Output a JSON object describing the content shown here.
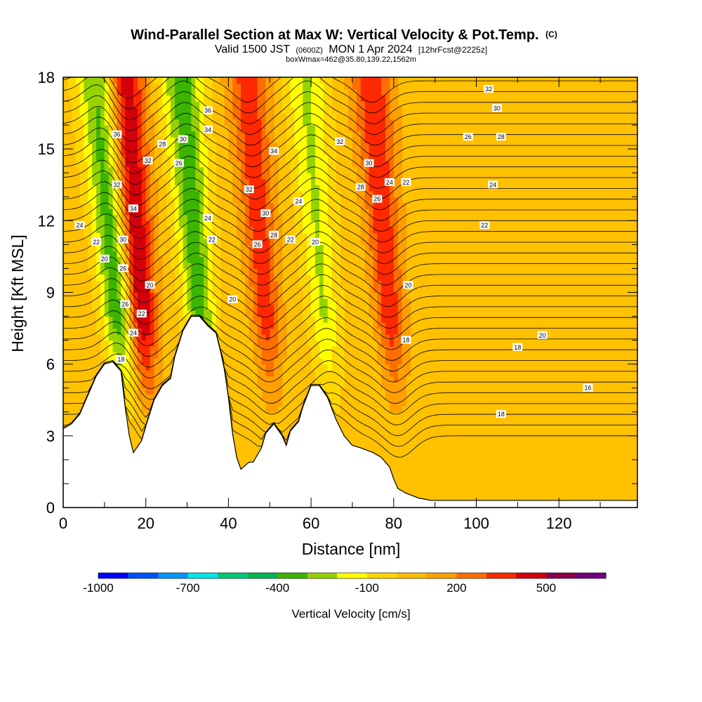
{
  "chart_data": {
    "type": "heatmap",
    "title": "Wind-Parallel Section at Max W: Vertical Velocity & Pot.Temp.",
    "title_mark": "(C)",
    "subtitle_parts": [
      "Valid 1500 JST",
      "(0600Z)",
      "MON 1 Apr 2024",
      "[12hrFcst@2225z]"
    ],
    "subtitle2": "boxWmax=462@35.80,139.22,1562m",
    "xlabel": "Distance [nm]",
    "ylabel": "Height [Kft MSL]",
    "xlim": [
      0,
      139
    ],
    "ylim": [
      0,
      18
    ],
    "x_ticks": [
      "0",
      "20",
      "40",
      "60",
      "80",
      "100",
      "120"
    ],
    "x_tick_values": [
      0,
      20,
      40,
      60,
      80,
      100,
      120
    ],
    "y_ticks": [
      "0",
      "3",
      "6",
      "9",
      "12",
      "15",
      "18"
    ],
    "y_tick_values": [
      0,
      3,
      6,
      9,
      12,
      15,
      18
    ],
    "colorbar": {
      "label": "Vertical Velocity [cm/s]",
      "tick_labels": [
        "-1000",
        "-700",
        "-400",
        "-100",
        "200",
        "500"
      ],
      "tick_values": [
        -1000,
        -700,
        -400,
        -100,
        200,
        500
      ],
      "levels": [
        -1000,
        -900,
        -800,
        -700,
        -600,
        -500,
        -400,
        -300,
        -200,
        -100,
        0,
        100,
        200,
        300,
        400,
        500,
        600,
        700
      ],
      "colors": [
        "#0000ff",
        "#0050ff",
        "#0096ff",
        "#00e6e6",
        "#00c878",
        "#00b450",
        "#3cb400",
        "#96d200",
        "#ffff00",
        "#ffd700",
        "#ffbb00",
        "#ff9f00",
        "#ff6e00",
        "#ff2800",
        "#d2000a",
        "#8c0046",
        "#6e007d"
      ]
    },
    "terrain": [
      [
        0,
        3.3
      ],
      [
        2,
        3.5
      ],
      [
        4,
        3.9
      ],
      [
        6,
        4.7
      ],
      [
        8,
        5.5
      ],
      [
        10,
        6.0
      ],
      [
        12,
        6.1
      ],
      [
        14,
        5.7
      ],
      [
        15,
        4.2
      ],
      [
        16,
        3.0
      ],
      [
        17,
        2.3
      ],
      [
        19,
        2.8
      ],
      [
        20,
        3.4
      ],
      [
        22,
        4.5
      ],
      [
        24,
        5.1
      ],
      [
        26,
        5.4
      ],
      [
        27,
        6.3
      ],
      [
        29,
        7.4
      ],
      [
        31,
        8.0
      ],
      [
        33,
        8.0
      ],
      [
        35,
        7.6
      ],
      [
        37,
        7.3
      ],
      [
        38,
        6.6
      ],
      [
        39,
        5.8
      ],
      [
        40,
        4.6
      ],
      [
        41,
        3.1
      ],
      [
        42,
        2.1
      ],
      [
        43,
        1.6
      ],
      [
        45,
        1.9
      ],
      [
        46,
        1.9
      ],
      [
        48,
        2.5
      ],
      [
        49,
        3.1
      ],
      [
        51,
        3.5
      ],
      [
        53,
        3.0
      ],
      [
        54,
        2.6
      ],
      [
        55,
        3.2
      ],
      [
        57,
        3.6
      ],
      [
        58,
        4.2
      ],
      [
        60,
        5.1
      ],
      [
        62,
        5.1
      ],
      [
        64,
        4.6
      ],
      [
        66,
        3.7
      ],
      [
        68,
        3.0
      ],
      [
        70,
        2.6
      ],
      [
        72,
        2.5
      ],
      [
        75,
        2.3
      ],
      [
        77,
        2.1
      ],
      [
        79,
        1.7
      ],
      [
        80,
        1.2
      ],
      [
        81,
        0.8
      ],
      [
        83,
        0.6
      ],
      [
        86,
        0.4
      ],
      [
        89,
        0.3
      ],
      [
        92,
        0.3
      ],
      [
        139,
        0.3
      ]
    ],
    "updrafts": [
      {
        "x": 20,
        "w": 480
      },
      {
        "x": 50,
        "w": 320
      },
      {
        "x": 80,
        "w": 340
      }
    ],
    "downdrafts": [
      {
        "x": 14,
        "w": -420
      },
      {
        "x": 34,
        "w": -400
      },
      {
        "x": 64,
        "w": -250
      }
    ],
    "theta_contour_labels": [
      {
        "text": "32",
        "x": 67,
        "y": 15.3
      },
      {
        "text": "30",
        "x": 74,
        "y": 14.4
      },
      {
        "text": "28",
        "x": 72,
        "y": 13.4
      },
      {
        "text": "26",
        "x": 76,
        "y": 12.9
      },
      {
        "text": "24",
        "x": 79,
        "y": 13.6
      },
      {
        "text": "22",
        "x": 83,
        "y": 13.6
      },
      {
        "text": "20",
        "x": 83.5,
        "y": 9.3
      },
      {
        "text": "18",
        "x": 83,
        "y": 7.0
      },
      {
        "text": "32",
        "x": 103,
        "y": 17.5
      },
      {
        "text": "30",
        "x": 105,
        "y": 16.7
      },
      {
        "text": "28",
        "x": 106,
        "y": 15.5
      },
      {
        "text": "26",
        "x": 98,
        "y": 15.5
      },
      {
        "text": "24",
        "x": 104,
        "y": 13.5
      },
      {
        "text": "22",
        "x": 102,
        "y": 11.8
      },
      {
        "text": "20",
        "x": 116,
        "y": 7.2
      },
      {
        "text": "18",
        "x": 110,
        "y": 6.7
      },
      {
        "text": "16",
        "x": 127,
        "y": 5.0
      },
      {
        "text": "18",
        "x": 106,
        "y": 3.9
      },
      {
        "text": "36",
        "x": 35,
        "y": 16.6
      },
      {
        "text": "34",
        "x": 35,
        "y": 15.8
      },
      {
        "text": "34",
        "x": 51,
        "y": 14.9
      },
      {
        "text": "32",
        "x": 45,
        "y": 13.3
      },
      {
        "text": "30",
        "x": 49,
        "y": 12.3
      },
      {
        "text": "28",
        "x": 51,
        "y": 11.4
      },
      {
        "text": "26",
        "x": 47,
        "y": 11.0
      },
      {
        "text": "24",
        "x": 57,
        "y": 12.8
      },
      {
        "text": "22",
        "x": 55,
        "y": 11.2
      },
      {
        "text": "20",
        "x": 61,
        "y": 11.1
      },
      {
        "text": "24",
        "x": 35,
        "y": 12.1
      },
      {
        "text": "22",
        "x": 36,
        "y": 11.2
      },
      {
        "text": "20",
        "x": 41,
        "y": 8.7
      },
      {
        "text": "30",
        "x": 29,
        "y": 15.4
      },
      {
        "text": "28",
        "x": 24,
        "y": 15.2
      },
      {
        "text": "26",
        "x": 28,
        "y": 14.4
      },
      {
        "text": "32",
        "x": 20.5,
        "y": 14.5
      },
      {
        "text": "34",
        "x": 17,
        "y": 12.5
      },
      {
        "text": "36",
        "x": 13,
        "y": 15.6
      },
      {
        "text": "32",
        "x": 13,
        "y": 13.5
      },
      {
        "text": "30",
        "x": 14.5,
        "y": 11.2
      },
      {
        "text": "26",
        "x": 14.5,
        "y": 10.0
      },
      {
        "text": "26",
        "x": 15,
        "y": 8.5
      },
      {
        "text": "24",
        "x": 4,
        "y": 11.8
      },
      {
        "text": "22",
        "x": 8,
        "y": 11.1
      },
      {
        "text": "20",
        "x": 10,
        "y": 10.4
      },
      {
        "text": "20",
        "x": 21,
        "y": 9.3
      },
      {
        "text": "22",
        "x": 19,
        "y": 8.1
      },
      {
        "text": "24",
        "x": 17,
        "y": 7.3
      },
      {
        "text": "18",
        "x": 14,
        "y": 6.2
      }
    ]
  }
}
